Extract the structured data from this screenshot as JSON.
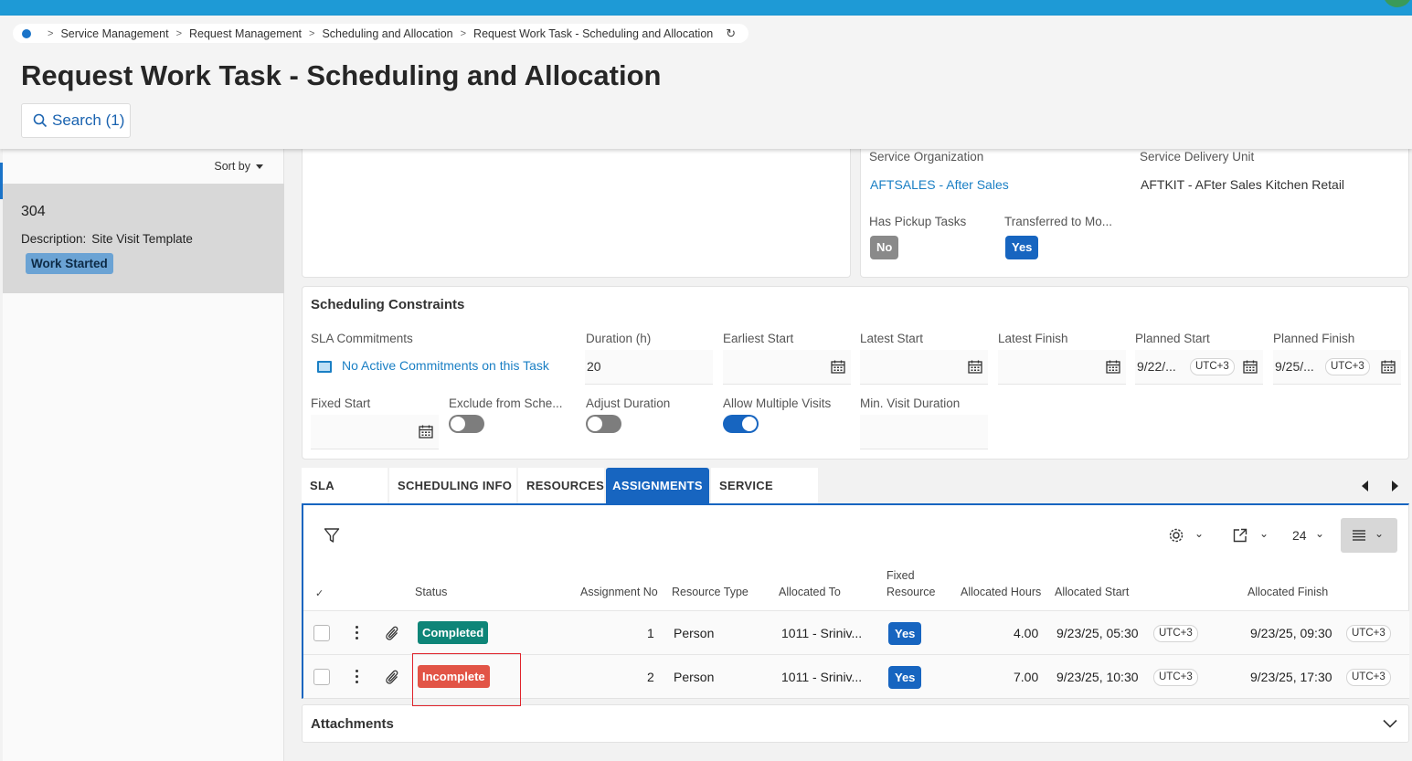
{
  "breadcrumb": [
    "Service Management",
    "Request Management",
    "Scheduling and Allocation",
    "Request Work Task - Scheduling and Allocation"
  ],
  "page_title": "Request Work Task - Scheduling and Allocation",
  "search_label": "Search (1)",
  "sort_label": "Sort by",
  "task": {
    "number": "304",
    "description_label": "Description:",
    "description_value": "Site Visit Template",
    "status": "Work Started"
  },
  "info": {
    "service_org_label": "Service Organization",
    "service_org_value": "AFTSALES - After Sales",
    "sdu_label": "Service Delivery Unit",
    "sdu_value": "AFTKIT - AFter Sales Kitchen Retail",
    "pickup_label": "Has Pickup Tasks",
    "pickup_value": "No",
    "transferred_label": "Transferred to Mo...",
    "transferred_value": "Yes"
  },
  "constraints": {
    "title": "Scheduling Constraints",
    "sla_label": "SLA Commitments",
    "sla_value": "No Active Commitments on this Task",
    "duration_label": "Duration (h)",
    "duration_value": "20",
    "earliest_start_label": "Earliest Start",
    "latest_start_label": "Latest Start",
    "latest_finish_label": "Latest Finish",
    "planned_start_label": "Planned Start",
    "planned_start_value": "9/22/...",
    "planned_finish_label": "Planned Finish",
    "planned_finish_value": "9/25/...",
    "utc": "UTC+3",
    "fixed_start_label": "Fixed Start",
    "exclude_label": "Exclude from Sche...",
    "exclude_on": false,
    "adjust_label": "Adjust Duration",
    "adjust_on": false,
    "multiple_label": "Allow Multiple Visits",
    "multiple_on": true,
    "min_visit_label": "Min. Visit Duration"
  },
  "tabs": [
    "SLA",
    "SCHEDULING INFO",
    "RESOURCES",
    "ASSIGNMENTS",
    "SERVICE NOTES"
  ],
  "active_tab": "ASSIGNMENTS",
  "grid": {
    "page_size": "24",
    "columns": {
      "status": "Status",
      "assignment_no": "Assignment No",
      "resource_type": "Resource Type",
      "allocated_to": "Allocated To",
      "fixed_resource_1": "Fixed",
      "fixed_resource_2": "Resource",
      "allocated_hours": "Allocated Hours",
      "allocated_start": "Allocated Start",
      "allocated_finish": "Allocated Finish"
    },
    "rows": [
      {
        "status": "Completed",
        "assignment_no": "1",
        "resource_type": "Person",
        "allocated_to": "1011 - Sriniv...",
        "fixed": "Yes",
        "hours": "4.00",
        "start": "9/23/25, 05:30",
        "start_tz": "UTC+3",
        "finish": "9/23/25, 09:30",
        "finish_tz": "UTC+3"
      },
      {
        "status": "Incomplete",
        "assignment_no": "2",
        "resource_type": "Person",
        "allocated_to": "1011 - Sriniv...",
        "fixed": "Yes",
        "hours": "7.00",
        "start": "9/23/25, 10:30",
        "start_tz": "UTC+3",
        "finish": "9/23/25, 17:30",
        "finish_tz": "UTC+3"
      }
    ]
  },
  "attachments_label": "Attachments"
}
